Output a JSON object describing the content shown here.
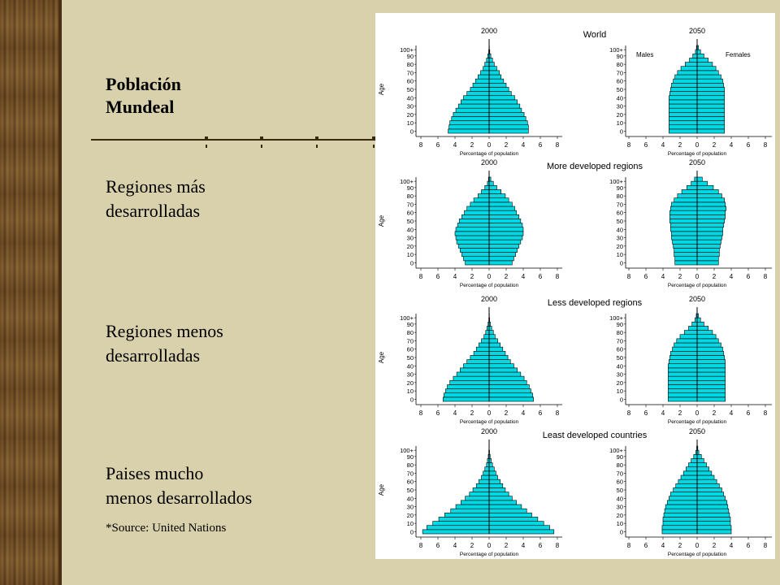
{
  "slide": {
    "title_line1": "Población",
    "title_line2": "Mundeal",
    "labels": [
      {
        "line1": "Regiones más",
        "line2": "desarrolladas"
      },
      {
        "line1": "Regiones menos",
        "line2": "desarrolladas"
      },
      {
        "line1": "Paises mucho",
        "line2": "menos desarrollados"
      }
    ],
    "source": "*Source: United Nations"
  },
  "colors": {
    "bar": "#00d9e4",
    "background": "#d9d1ac",
    "figure_bg": "#ffffff"
  },
  "chart_data": [
    {
      "type": "bar",
      "panel": "World",
      "region_title": "World",
      "year": "2000",
      "xlabel": "Percentage of population",
      "ylabel": "Age",
      "xticks": [
        8,
        6,
        4,
        2,
        0,
        2,
        4,
        6,
        8
      ],
      "yticks": [
        "0",
        "10",
        "20",
        "30",
        "40",
        "50",
        "60",
        "70",
        "80",
        "90",
        "100+"
      ],
      "age_groups": 21,
      "males": [
        4.8,
        4.7,
        4.6,
        4.4,
        4.2,
        3.9,
        3.6,
        3.3,
        3.0,
        2.6,
        2.2,
        1.9,
        1.6,
        1.3,
        1.0,
        0.7,
        0.5,
        0.3,
        0.15,
        0.05,
        0.02
      ],
      "females": [
        4.6,
        4.6,
        4.5,
        4.3,
        4.1,
        3.8,
        3.6,
        3.3,
        3.0,
        2.6,
        2.3,
        2.0,
        1.7,
        1.4,
        1.2,
        0.9,
        0.6,
        0.4,
        0.2,
        0.08,
        0.03
      ]
    },
    {
      "type": "bar",
      "panel": "World",
      "year": "2050",
      "sex_labels": [
        "Males",
        "Females"
      ],
      "xlabel": "Percentage of population",
      "xticks": [
        8,
        6,
        4,
        2,
        0,
        2,
        4,
        6,
        8
      ],
      "yticks": [
        "0",
        "10",
        "20",
        "30",
        "40",
        "50",
        "60",
        "70",
        "80",
        "90",
        "100+"
      ],
      "males": [
        3.3,
        3.3,
        3.3,
        3.3,
        3.3,
        3.3,
        3.3,
        3.3,
        3.3,
        3.2,
        3.1,
        3.0,
        2.8,
        2.6,
        2.3,
        1.9,
        1.4,
        0.9,
        0.5,
        0.2,
        0.08
      ],
      "females": [
        3.2,
        3.2,
        3.2,
        3.2,
        3.2,
        3.2,
        3.2,
        3.2,
        3.2,
        3.2,
        3.2,
        3.1,
        3.0,
        2.8,
        2.5,
        2.2,
        1.8,
        1.3,
        0.8,
        0.4,
        0.15
      ]
    },
    {
      "type": "bar",
      "panel": "More developed regions",
      "region_title": "More developed regions",
      "year": "2000",
      "xlabel": "Percentage of population",
      "ylabel": "Age",
      "xticks": [
        8,
        6,
        4,
        2,
        0,
        2,
        4,
        6,
        8
      ],
      "yticks": [
        "0",
        "10",
        "20",
        "30",
        "40",
        "50",
        "60",
        "70",
        "80",
        "90",
        "100+"
      ],
      "males": [
        2.8,
        3.0,
        3.2,
        3.4,
        3.6,
        3.8,
        3.9,
        4.0,
        3.9,
        3.7,
        3.5,
        3.2,
        2.9,
        2.6,
        2.2,
        1.8,
        1.3,
        0.9,
        0.5,
        0.2,
        0.08
      ],
      "females": [
        2.7,
        2.9,
        3.1,
        3.3,
        3.5,
        3.7,
        3.9,
        4.0,
        4.0,
        3.9,
        3.7,
        3.5,
        3.2,
        3.0,
        2.7,
        2.3,
        1.9,
        1.4,
        0.9,
        0.5,
        0.2
      ]
    },
    {
      "type": "bar",
      "panel": "More developed regions",
      "year": "2050",
      "xlabel": "Percentage of population",
      "xticks": [
        8,
        6,
        4,
        2,
        0,
        2,
        4,
        6,
        8
      ],
      "yticks": [
        "0",
        "10",
        "20",
        "30",
        "40",
        "50",
        "60",
        "70",
        "80",
        "90",
        "100+"
      ],
      "males": [
        2.6,
        2.6,
        2.7,
        2.7,
        2.8,
        2.9,
        3.0,
        3.0,
        3.1,
        3.1,
        3.2,
        3.2,
        3.2,
        3.1,
        3.0,
        2.7,
        2.3,
        1.8,
        1.2,
        0.7,
        0.3
      ],
      "females": [
        2.5,
        2.5,
        2.6,
        2.6,
        2.7,
        2.8,
        2.9,
        3.0,
        3.0,
        3.1,
        3.2,
        3.3,
        3.3,
        3.4,
        3.3,
        3.2,
        2.9,
        2.5,
        1.9,
        1.2,
        0.6
      ]
    },
    {
      "type": "bar",
      "panel": "Less developed regions",
      "region_title": "Less developed regions",
      "year": "2000",
      "xlabel": "Percentage of population",
      "ylabel": "Age",
      "xticks": [
        8,
        6,
        4,
        2,
        0,
        2,
        4,
        6,
        8
      ],
      "yticks": [
        "0",
        "10",
        "20",
        "30",
        "40",
        "50",
        "60",
        "70",
        "80",
        "90",
        "100+"
      ],
      "males": [
        5.4,
        5.3,
        5.1,
        4.9,
        4.6,
        4.2,
        3.8,
        3.4,
        3.0,
        2.6,
        2.2,
        1.8,
        1.5,
        1.2,
        0.9,
        0.6,
        0.4,
        0.25,
        0.12,
        0.04,
        0.02
      ],
      "females": [
        5.2,
        5.1,
        4.9,
        4.7,
        4.4,
        4.1,
        3.7,
        3.3,
        2.9,
        2.5,
        2.2,
        1.9,
        1.6,
        1.3,
        1.0,
        0.7,
        0.5,
        0.3,
        0.15,
        0.06,
        0.03
      ]
    },
    {
      "type": "bar",
      "panel": "Less developed regions",
      "year": "2050",
      "xlabel": "Percentage of population",
      "xticks": [
        8,
        6,
        4,
        2,
        0,
        2,
        4,
        6,
        8
      ],
      "yticks": [
        "0",
        "10",
        "20",
        "30",
        "40",
        "50",
        "60",
        "70",
        "80",
        "90",
        "100+"
      ],
      "males": [
        3.4,
        3.4,
        3.4,
        3.4,
        3.4,
        3.4,
        3.4,
        3.4,
        3.4,
        3.3,
        3.2,
        3.1,
        2.9,
        2.7,
        2.4,
        2.0,
        1.5,
        1.0,
        0.6,
        0.25,
        0.1
      ],
      "females": [
        3.3,
        3.3,
        3.3,
        3.3,
        3.3,
        3.3,
        3.3,
        3.3,
        3.3,
        3.3,
        3.2,
        3.1,
        3.0,
        2.8,
        2.5,
        2.2,
        1.8,
        1.3,
        0.8,
        0.4,
        0.15
      ]
    },
    {
      "type": "bar",
      "panel": "Least developed countries",
      "region_title": "Least developed countries",
      "year": "2000",
      "xlabel": "Percentage of population",
      "ylabel": "Age",
      "xticks": [
        8,
        6,
        4,
        2,
        0,
        2,
        4,
        6,
        8
      ],
      "yticks": [
        "0",
        "10",
        "20",
        "30",
        "40",
        "50",
        "60",
        "70",
        "80",
        "90",
        "100+"
      ],
      "males": [
        7.8,
        7.3,
        6.6,
        5.9,
        5.2,
        4.5,
        3.9,
        3.3,
        2.8,
        2.3,
        1.9,
        1.5,
        1.2,
        0.9,
        0.7,
        0.5,
        0.3,
        0.2,
        0.1,
        0.04,
        0.02
      ],
      "females": [
        7.6,
        7.1,
        6.4,
        5.7,
        5.0,
        4.4,
        3.8,
        3.2,
        2.7,
        2.3,
        1.9,
        1.6,
        1.3,
        1.0,
        0.8,
        0.6,
        0.4,
        0.25,
        0.12,
        0.05,
        0.02
      ]
    },
    {
      "type": "bar",
      "panel": "Least developed countries",
      "year": "2050",
      "xlabel": "Percentage of population",
      "xticks": [
        8,
        6,
        4,
        2,
        0,
        2,
        4,
        6,
        8
      ],
      "yticks": [
        "0",
        "10",
        "20",
        "30",
        "40",
        "50",
        "60",
        "70",
        "80",
        "90",
        "100+"
      ],
      "males": [
        4.1,
        4.1,
        4.0,
        4.0,
        3.9,
        3.8,
        3.7,
        3.5,
        3.3,
        3.1,
        2.8,
        2.5,
        2.2,
        1.9,
        1.6,
        1.3,
        1.0,
        0.7,
        0.4,
        0.15,
        0.05
      ],
      "females": [
        4.0,
        4.0,
        3.9,
        3.9,
        3.8,
        3.7,
        3.6,
        3.5,
        3.3,
        3.1,
        2.9,
        2.6,
        2.3,
        2.0,
        1.7,
        1.4,
        1.1,
        0.8,
        0.5,
        0.2,
        0.08
      ]
    }
  ]
}
